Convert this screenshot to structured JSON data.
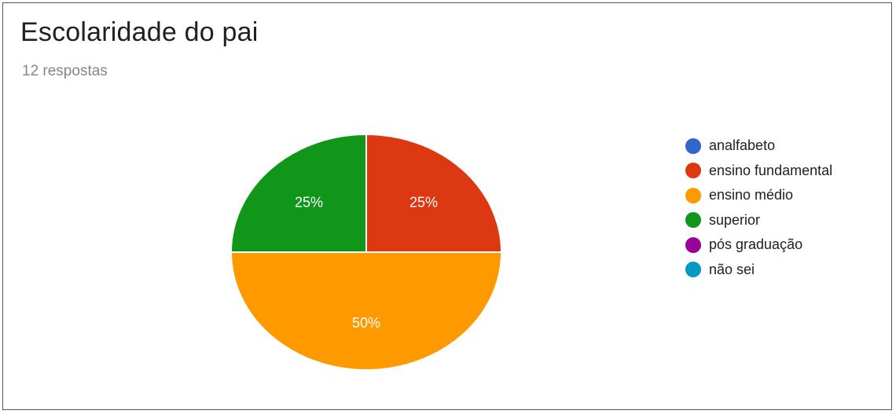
{
  "card": {
    "title": "Escolaridade do pai",
    "subtitle": "12 respostas"
  },
  "chart_data": {
    "type": "pie",
    "title": "Escolaridade do pai",
    "subtitle": "12 respostas",
    "legend_position": "right",
    "slices": [
      {
        "label": "analfabeto",
        "value": 0,
        "color": "#3366cc",
        "show_label": false
      },
      {
        "label": "ensino fundamental",
        "value": 25,
        "color": "#dc3912",
        "show_label": true,
        "display": "25%"
      },
      {
        "label": "ensino médio",
        "value": 50,
        "color": "#ff9900",
        "show_label": true,
        "display": "50%"
      },
      {
        "label": "superior",
        "value": 25,
        "color": "#109618",
        "show_label": true,
        "display": "25%"
      },
      {
        "label": "pós graduação",
        "value": 0,
        "color": "#990099",
        "show_label": false
      },
      {
        "label": "não sei",
        "value": 0,
        "color": "#0099c6",
        "show_label": false
      }
    ]
  }
}
